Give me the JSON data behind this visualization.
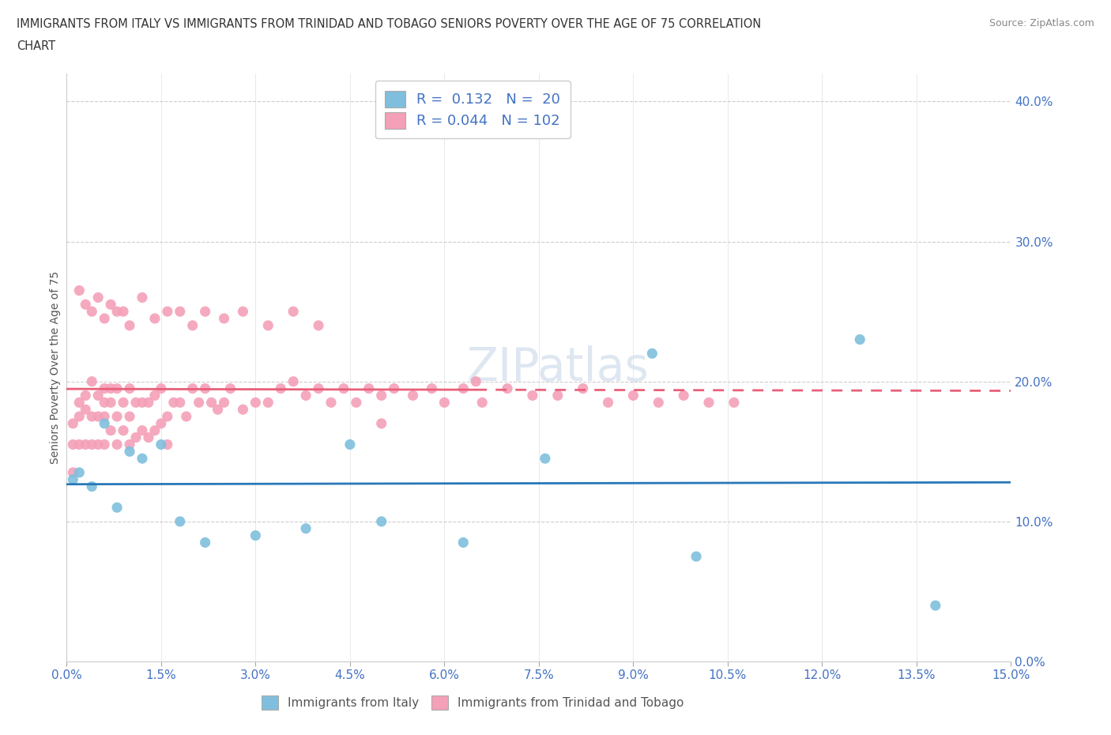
{
  "title_line1": "IMMIGRANTS FROM ITALY VS IMMIGRANTS FROM TRINIDAD AND TOBAGO SENIORS POVERTY OVER THE AGE OF 75 CORRELATION",
  "title_line2": "CHART",
  "source": "Source: ZipAtlas.com",
  "ylabel": "Seniors Poverty Over the Age of 75",
  "xlim": [
    0.0,
    0.15
  ],
  "ylim": [
    0.0,
    0.42
  ],
  "xticks": [
    0.0,
    0.015,
    0.03,
    0.045,
    0.06,
    0.075,
    0.09,
    0.105,
    0.12,
    0.135,
    0.15
  ],
  "yticks": [
    0.0,
    0.1,
    0.2,
    0.3,
    0.4
  ],
  "italy_color": "#7fbfdd",
  "tt_color": "#f4a0b8",
  "italy_line_color": "#2878b8",
  "tt_line_color": "#e8607a",
  "italy_R": 0.132,
  "italy_N": 20,
  "tt_R": 0.044,
  "tt_N": 102,
  "watermark": "ZIPatlas",
  "italy_x": [
    0.001,
    0.002,
    0.004,
    0.006,
    0.008,
    0.01,
    0.012,
    0.015,
    0.018,
    0.022,
    0.03,
    0.038,
    0.045,
    0.05,
    0.063,
    0.076,
    0.093,
    0.1,
    0.126,
    0.138
  ],
  "italy_y": [
    0.13,
    0.135,
    0.125,
    0.17,
    0.11,
    0.15,
    0.145,
    0.155,
    0.1,
    0.085,
    0.09,
    0.095,
    0.155,
    0.1,
    0.085,
    0.145,
    0.22,
    0.075,
    0.23,
    0.04
  ],
  "tt_x": [
    0.001,
    0.001,
    0.001,
    0.002,
    0.002,
    0.002,
    0.003,
    0.003,
    0.003,
    0.004,
    0.004,
    0.004,
    0.005,
    0.005,
    0.005,
    0.006,
    0.006,
    0.006,
    0.006,
    0.007,
    0.007,
    0.007,
    0.008,
    0.008,
    0.008,
    0.009,
    0.009,
    0.01,
    0.01,
    0.01,
    0.011,
    0.011,
    0.012,
    0.012,
    0.013,
    0.013,
    0.014,
    0.014,
    0.015,
    0.015,
    0.016,
    0.016,
    0.017,
    0.018,
    0.019,
    0.02,
    0.021,
    0.022,
    0.023,
    0.024,
    0.025,
    0.026,
    0.028,
    0.03,
    0.032,
    0.034,
    0.036,
    0.038,
    0.04,
    0.042,
    0.044,
    0.046,
    0.048,
    0.05,
    0.052,
    0.055,
    0.058,
    0.06,
    0.063,
    0.066,
    0.07,
    0.074,
    0.078,
    0.082,
    0.086,
    0.09,
    0.094,
    0.098,
    0.102,
    0.106,
    0.002,
    0.003,
    0.004,
    0.005,
    0.006,
    0.007,
    0.008,
    0.009,
    0.01,
    0.012,
    0.014,
    0.016,
    0.018,
    0.02,
    0.022,
    0.025,
    0.028,
    0.032,
    0.036,
    0.04,
    0.05,
    0.065
  ],
  "tt_y": [
    0.17,
    0.155,
    0.135,
    0.175,
    0.185,
    0.155,
    0.19,
    0.18,
    0.155,
    0.2,
    0.175,
    0.155,
    0.19,
    0.175,
    0.155,
    0.195,
    0.185,
    0.175,
    0.155,
    0.195,
    0.185,
    0.165,
    0.195,
    0.175,
    0.155,
    0.185,
    0.165,
    0.195,
    0.175,
    0.155,
    0.185,
    0.16,
    0.185,
    0.165,
    0.185,
    0.16,
    0.19,
    0.165,
    0.195,
    0.17,
    0.175,
    0.155,
    0.185,
    0.185,
    0.175,
    0.195,
    0.185,
    0.195,
    0.185,
    0.18,
    0.185,
    0.195,
    0.18,
    0.185,
    0.185,
    0.195,
    0.2,
    0.19,
    0.195,
    0.185,
    0.195,
    0.185,
    0.195,
    0.19,
    0.195,
    0.19,
    0.195,
    0.185,
    0.195,
    0.185,
    0.195,
    0.19,
    0.19,
    0.195,
    0.185,
    0.19,
    0.185,
    0.19,
    0.185,
    0.185,
    0.265,
    0.255,
    0.25,
    0.26,
    0.245,
    0.255,
    0.25,
    0.25,
    0.24,
    0.26,
    0.245,
    0.25,
    0.25,
    0.24,
    0.25,
    0.245,
    0.25,
    0.24,
    0.25,
    0.24,
    0.17,
    0.2
  ]
}
